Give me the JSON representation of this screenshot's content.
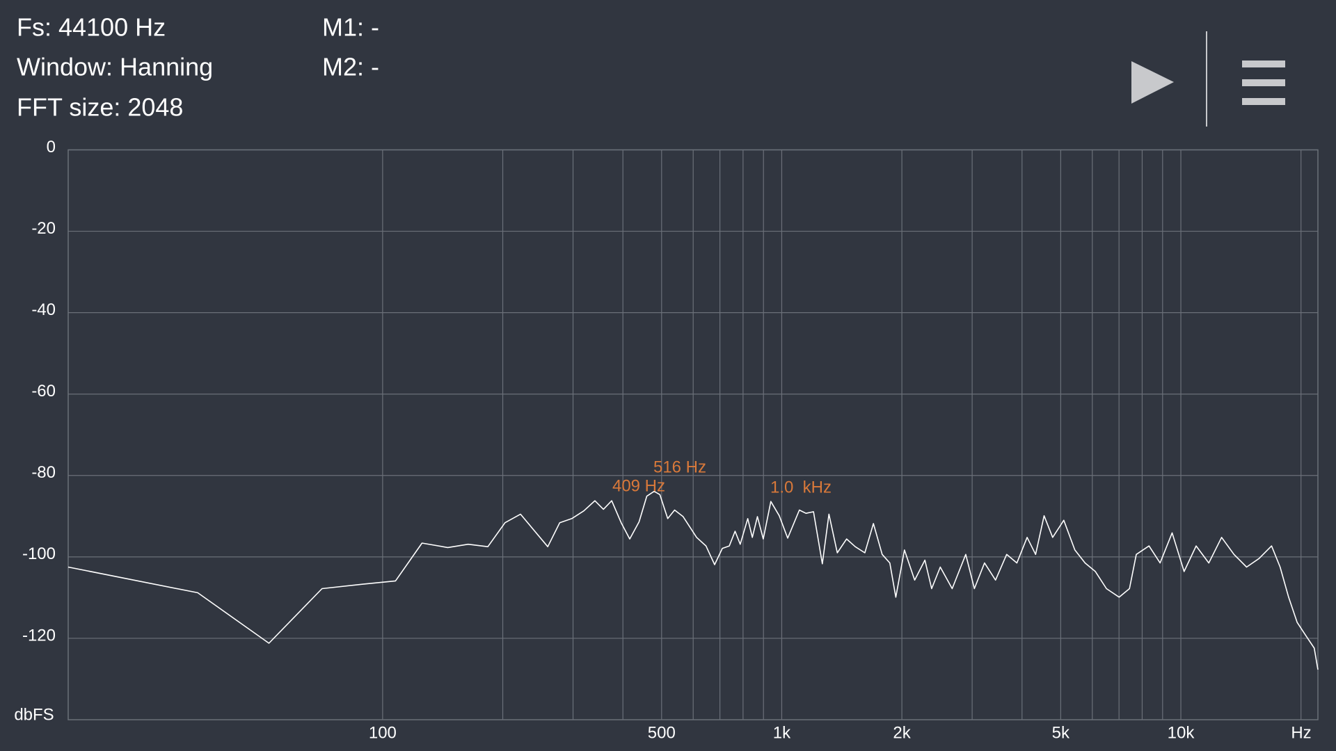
{
  "info": {
    "fs": "Fs: 44100 Hz",
    "window": "Window: Hanning",
    "fft_size": "FFT size: 2048",
    "m1": "M1: -",
    "m2": "M2: -"
  },
  "chart_data": {
    "type": "line",
    "color": "#ffffff",
    "log_x": true,
    "grid": true,
    "x": [
      16.3,
      34.4,
      51.9,
      70.5,
      89.3,
      107.7,
      125.5,
      145.6,
      163.8,
      183.5,
      202.6,
      221.5,
      259.3,
      277.8,
      297.8,
      319.2,
      340.2,
      357.5,
      375,
      396,
      416,
      439,
      459,
      479,
      495,
      518,
      539,
      566,
      612,
      646,
      679,
      710,
      739,
      764,
      787,
      822,
      844,
      869,
      899,
      939,
      986,
      1035,
      1107,
      1150,
      1201,
      1264,
      1313,
      1378,
      1454,
      1528,
      1615,
      1697,
      1785,
      1866,
      1931,
      2030,
      2153,
      2284,
      2375,
      2496,
      2673,
      2891,
      3038,
      3222,
      3433,
      3660,
      3883,
      4119,
      4326,
      4544,
      4773,
      5089,
      5426,
      5756,
      6108,
      6511,
      7007,
      7436,
      7732,
      8322,
      8871,
      9510,
      10190,
      10920,
      11750,
      12650,
      13590,
      14610,
      15700,
      16880,
      17730,
      18620,
      19560,
      20550,
      21590,
      22050
    ],
    "values": [
      -102.5,
      -108.8,
      -121.2,
      -107.8,
      -106.7,
      -105.9,
      -96.6,
      -97.7,
      -96.9,
      -97.5,
      -91.6,
      -89.5,
      -97.5,
      -91.6,
      -90.6,
      -88.7,
      -86.2,
      -88.3,
      -86.2,
      -91.6,
      -95.6,
      -91.4,
      -85.1,
      -83.9,
      -84.7,
      -90.6,
      -88.5,
      -90.1,
      -95.2,
      -97.3,
      -101.9,
      -97.9,
      -97.3,
      -93.7,
      -96.9,
      -90.6,
      -95.2,
      -90.1,
      -95.6,
      -86.4,
      -89.9,
      -95.4,
      -88.5,
      -89.3,
      -88.9,
      -101.7,
      -89.5,
      -99.0,
      -95.6,
      -97.5,
      -99.0,
      -91.8,
      -99.4,
      -101.5,
      -109.9,
      -98.3,
      -105.7,
      -100.8,
      -107.8,
      -102.5,
      -107.8,
      -99.4,
      -107.8,
      -101.5,
      -105.7,
      -99.4,
      -101.5,
      -95.2,
      -99.4,
      -89.9,
      -95.2,
      -91.0,
      -98.3,
      -101.5,
      -103.6,
      -107.8,
      -109.9,
      -107.8,
      -99.4,
      -97.3,
      -101.5,
      -94.1,
      -103.6,
      -97.3,
      -101.5,
      -95.2,
      -99.4,
      -102.5,
      -100.4,
      -97.3,
      -102.5,
      -109.9,
      -116.1,
      -119.3,
      -122.4,
      -127.7
    ],
    "xlim": [
      16.3,
      22050
    ],
    "ylim": [
      -140,
      0
    ],
    "yticks": [
      0,
      -20,
      -40,
      -60,
      -80,
      -100,
      -120
    ],
    "xticks": [
      100,
      500,
      {
        "value": 1000,
        "label": "1k"
      },
      {
        "value": 2000,
        "label": "2k"
      },
      {
        "value": 5000,
        "label": "5k"
      },
      {
        "value": 10000,
        "label": "10k"
      }
    ],
    "xgrid": [
      200,
      300,
      400,
      600,
      700,
      800,
      900,
      3000,
      4000,
      6000,
      7000,
      8000,
      9000,
      20000
    ],
    "xlabel": "Hz",
    "ylabel": "dbFS",
    "annotations": [
      "409 Hz",
      "516 Hz",
      "1.0  kHz"
    ]
  }
}
